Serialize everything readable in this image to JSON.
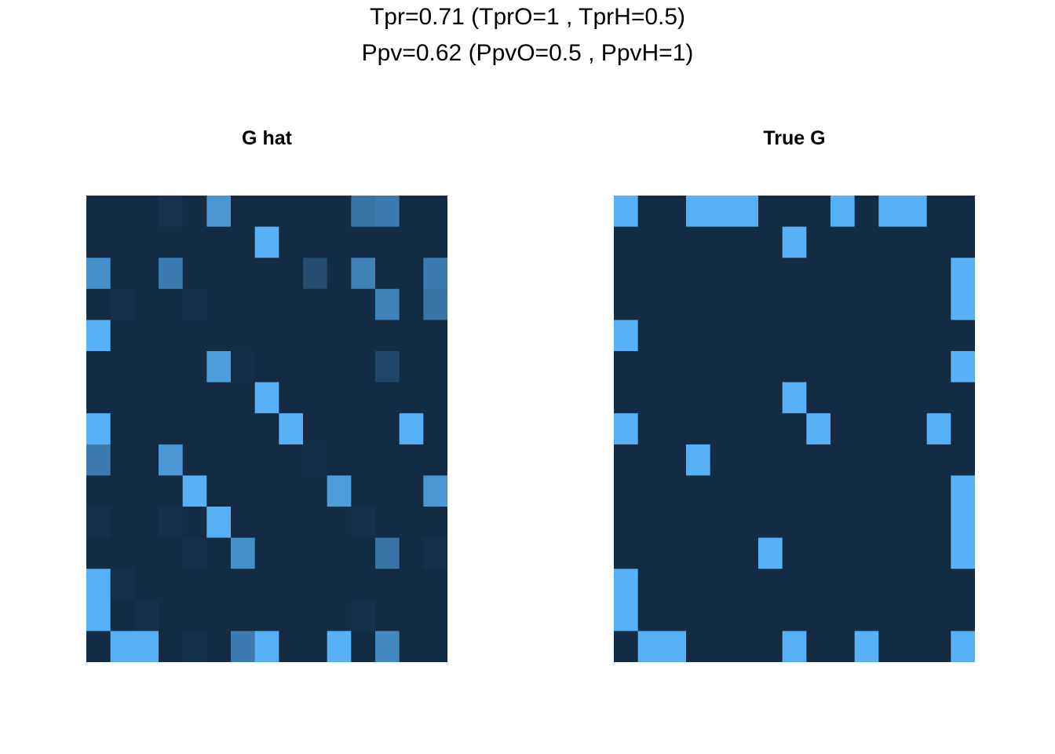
{
  "title_line_1": "Tpr=0.71 (TprO=1 , TprH=0.5)",
  "title_line_2": "Ppv=0.62 (PpvO=0.5 , PpvH=1)",
  "colors": {
    "low": "#132B43",
    "high": "#56B1F7"
  },
  "chart_data": [
    {
      "type": "heatmap",
      "title": "G hat",
      "n_rows": 15,
      "n_cols": 15,
      "values": [
        [
          0,
          0,
          0,
          0.05,
          0,
          0.8,
          0,
          0,
          0,
          0,
          0,
          0.55,
          0.6,
          0,
          0
        ],
        [
          0,
          0,
          0,
          0,
          0,
          0,
          0,
          1,
          0,
          0,
          0,
          0,
          0,
          0,
          0
        ],
        [
          0.75,
          0,
          0,
          0.6,
          0,
          0,
          0,
          0,
          0,
          0.25,
          0,
          0.65,
          0,
          0,
          0.6
        ],
        [
          0,
          0.04,
          0,
          0,
          0.04,
          0,
          0,
          0,
          0,
          0,
          0,
          0,
          0.65,
          0,
          0.55
        ],
        [
          1,
          0,
          0,
          0,
          0,
          0,
          0,
          0,
          0,
          0,
          0,
          0,
          0,
          0,
          0
        ],
        [
          0,
          0,
          0,
          0,
          0,
          0.85,
          0.02,
          0,
          0,
          0,
          0,
          0,
          0.2,
          0,
          0
        ],
        [
          0,
          0,
          0,
          0,
          0,
          0,
          0,
          1,
          0,
          0,
          0,
          0,
          0,
          0,
          0
        ],
        [
          1,
          0,
          0,
          0,
          0,
          0,
          0,
          0,
          1,
          0,
          0,
          0,
          0,
          1,
          0
        ],
        [
          0.6,
          0,
          0,
          0.8,
          0,
          0,
          0,
          0,
          0,
          0.02,
          0,
          0,
          0,
          0,
          0
        ],
        [
          0,
          0,
          0,
          0,
          1,
          0,
          0,
          0,
          0,
          0,
          0.85,
          0,
          0,
          0,
          0.8
        ],
        [
          0.04,
          0,
          0,
          0.04,
          0,
          1,
          0,
          0,
          0,
          0,
          0,
          0.04,
          0,
          0,
          0
        ],
        [
          0,
          0,
          0,
          0,
          0.04,
          0,
          0.75,
          0,
          0,
          0,
          0,
          0,
          0.55,
          0,
          0.04
        ],
        [
          1,
          0.04,
          0,
          0,
          0,
          0,
          0,
          0,
          0,
          0,
          0,
          0,
          0,
          0,
          0
        ],
        [
          1,
          0,
          0.04,
          0,
          0,
          0,
          0,
          0,
          0,
          0,
          0,
          0.04,
          0,
          0,
          0
        ],
        [
          0,
          1,
          1,
          0,
          0.04,
          0,
          0.6,
          1,
          0,
          0,
          1,
          0,
          0.7,
          0,
          0
        ]
      ]
    },
    {
      "type": "heatmap",
      "title": "True G",
      "n_rows": 15,
      "n_cols": 15,
      "values": [
        [
          1,
          0,
          0,
          1,
          1,
          1,
          0,
          0,
          0,
          1,
          0,
          1,
          1,
          0,
          0
        ],
        [
          0,
          0,
          0,
          0,
          0,
          0,
          0,
          1,
          0,
          0,
          0,
          0,
          0,
          0,
          0
        ],
        [
          0,
          0,
          0,
          0,
          0,
          0,
          0,
          0,
          0,
          0,
          0,
          0,
          0,
          0,
          1
        ],
        [
          0,
          0,
          0,
          0,
          0,
          0,
          0,
          0,
          0,
          0,
          0,
          0,
          0,
          0,
          1
        ],
        [
          1,
          0,
          0,
          0,
          0,
          0,
          0,
          0,
          0,
          0,
          0,
          0,
          0,
          0,
          0
        ],
        [
          0,
          0,
          0,
          0,
          0,
          0,
          0,
          0,
          0,
          0,
          0,
          0,
          0,
          0,
          1
        ],
        [
          0,
          0,
          0,
          0,
          0,
          0,
          0,
          1,
          0,
          0,
          0,
          0,
          0,
          0,
          0
        ],
        [
          1,
          0,
          0,
          0,
          0,
          0,
          0,
          0,
          1,
          0,
          0,
          0,
          0,
          1,
          0
        ],
        [
          0,
          0,
          0,
          1,
          0,
          0,
          0,
          0,
          0,
          0,
          0,
          0,
          0,
          0,
          0
        ],
        [
          0,
          0,
          0,
          0,
          0,
          0,
          0,
          0,
          0,
          0,
          0,
          0,
          0,
          0,
          1
        ],
        [
          0,
          0,
          0,
          0,
          0,
          0,
          0,
          0,
          0,
          0,
          0,
          0,
          0,
          0,
          1
        ],
        [
          0,
          0,
          0,
          0,
          0,
          0,
          1,
          0,
          0,
          0,
          0,
          0,
          0,
          0,
          1
        ],
        [
          1,
          0,
          0,
          0,
          0,
          0,
          0,
          0,
          0,
          0,
          0,
          0,
          0,
          0,
          0
        ],
        [
          1,
          0,
          0,
          0,
          0,
          0,
          0,
          0,
          0,
          0,
          0,
          0,
          0,
          0,
          0
        ],
        [
          0,
          1,
          1,
          0,
          0,
          0,
          0,
          1,
          0,
          0,
          1,
          0,
          0,
          0,
          1
        ]
      ]
    }
  ]
}
